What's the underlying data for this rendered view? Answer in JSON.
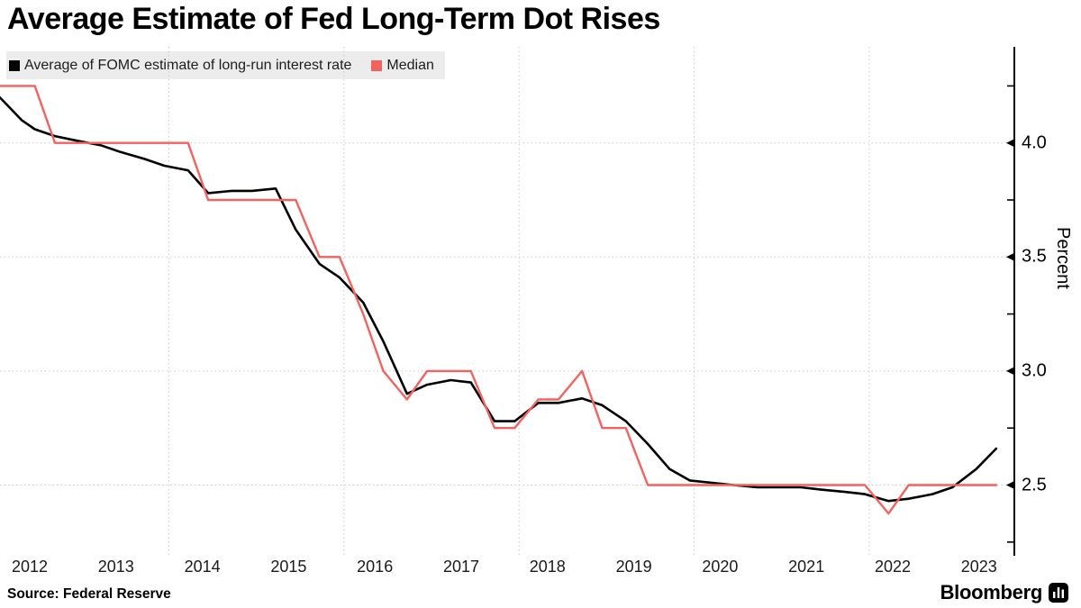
{
  "title": "Average Estimate of Fed Long-Term Dot Rises",
  "legend": {
    "items": [
      {
        "label": "Average of FOMC estimate of long-run interest rate",
        "color": "#000000"
      },
      {
        "label": "Median",
        "color": "#F4625F"
      }
    ]
  },
  "axis": {
    "ylabel": "Percent",
    "ytick_labels": [
      "4.0",
      "3.5",
      "3.0",
      "2.5"
    ],
    "xtick_labels": [
      "2012",
      "2013",
      "2014",
      "2015",
      "2016",
      "2017",
      "2018",
      "2019",
      "2020",
      "2021",
      "2022",
      "2023"
    ]
  },
  "source": {
    "text": "Source: Federal Reserve"
  },
  "logo": {
    "text": "Bloomberg"
  },
  "chart_data": {
    "type": "line",
    "title": "Average Estimate of Fed Long-Term Dot Rises",
    "xlabel": "",
    "ylabel": "Percent",
    "x_unit": "FOMC projection date (decimal year, quarterly SEP meetings 2012-2023)",
    "ylim": [
      2.2,
      4.4
    ],
    "yticks_major": [
      2.5,
      3.0,
      3.5,
      4.0
    ],
    "yticks_minor": [
      2.25,
      2.75,
      3.25,
      3.75,
      4.25
    ],
    "grid_x_years": [
      2014,
      2016,
      2018,
      2020,
      2022
    ],
    "xtick_years": [
      2012,
      2013,
      2014,
      2015,
      2016,
      2017,
      2018,
      2019,
      2020,
      2021,
      2022,
      2023
    ],
    "legend_position": "top-left",
    "grid": "dotted",
    "x": [
      2012.07,
      2012.32,
      2012.47,
      2012.7,
      2012.95,
      2013.22,
      2013.45,
      2013.72,
      2013.95,
      2014.22,
      2014.45,
      2014.72,
      2014.95,
      2015.22,
      2015.45,
      2015.72,
      2015.95,
      2016.22,
      2016.45,
      2016.72,
      2016.95,
      2017.22,
      2017.45,
      2017.72,
      2017.95,
      2018.22,
      2018.45,
      2018.72,
      2018.95,
      2019.22,
      2019.47,
      2019.72,
      2019.95,
      2020.45,
      2020.72,
      2020.95,
      2021.22,
      2021.45,
      2021.72,
      2021.95,
      2022.22,
      2022.45,
      2022.72,
      2022.95,
      2023.22,
      2023.45
    ],
    "series": [
      {
        "name": "Average of FOMC estimate of long-run interest rate",
        "color": "#000000",
        "width": 2.6,
        "values": [
          4.2,
          4.1,
          4.06,
          4.03,
          4.01,
          3.99,
          3.96,
          3.93,
          3.9,
          3.88,
          3.78,
          3.79,
          3.79,
          3.8,
          3.62,
          3.47,
          3.41,
          3.3,
          3.13,
          2.9,
          2.94,
          2.96,
          2.95,
          2.78,
          2.78,
          2.86,
          2.86,
          2.88,
          2.85,
          2.78,
          2.68,
          2.57,
          2.52,
          2.5,
          2.49,
          2.49,
          2.49,
          2.48,
          2.47,
          2.46,
          2.43,
          2.44,
          2.46,
          2.49,
          2.57,
          2.66
        ]
      },
      {
        "name": "Median",
        "color": "#F4625F",
        "width": 2.4,
        "values": [
          4.25,
          4.25,
          4.25,
          4.0,
          4.0,
          4.0,
          4.0,
          4.0,
          4.0,
          4.0,
          3.75,
          3.75,
          3.75,
          3.75,
          3.75,
          3.5,
          3.5,
          3.25,
          3.0,
          2.875,
          3.0,
          3.0,
          3.0,
          2.75,
          2.75,
          2.875,
          2.875,
          3.0,
          2.75,
          2.75,
          2.5,
          2.5,
          2.5,
          2.5,
          2.5,
          2.5,
          2.5,
          2.5,
          2.5,
          2.5,
          2.375,
          2.5,
          2.5,
          2.5,
          2.5,
          2.5
        ]
      }
    ]
  }
}
